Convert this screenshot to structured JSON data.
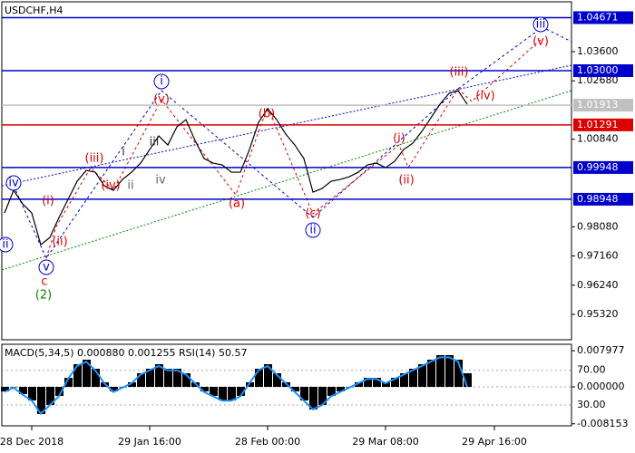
{
  "chart_data": [
    {
      "type": "line",
      "title": "USDCHF,H4",
      "categories": [
        null,
        null,
        null,
        "28 Dec 2018",
        null,
        null,
        null,
        null,
        null,
        null,
        null,
        null,
        null,
        null,
        null,
        null,
        "29 Jan 16:00",
        null,
        null,
        null,
        null,
        null,
        null,
        null,
        null,
        null,
        null,
        null,
        null,
        "28 Feb 00:00",
        null,
        null,
        null,
        null,
        null,
        null,
        null,
        null,
        null,
        null,
        null,
        null,
        "29 Mar 08:00",
        null,
        null,
        null,
        null,
        null,
        null,
        null,
        null,
        null,
        null,
        null,
        "29 Apr 16:00",
        null,
        null,
        null,
        null,
        null,
        null,
        null,
        null
      ],
      "values": [
        0.98514,
        0.99229,
        0.988,
        0.98514,
        0.97514,
        0.97743,
        0.98371,
        0.98943,
        0.99514,
        0.99857,
        0.998,
        0.99371,
        0.99229,
        0.99571,
        0.998,
        1.00086,
        1.00514,
        1.00943,
        1.00657,
        1.01229,
        1.01457,
        1.008,
        1.00229,
        1.00086,
        1.00029,
        0.998,
        0.998,
        1.00514,
        1.01371,
        1.018,
        1.01457,
        1.01,
        1.00657,
        1.00229,
        0.99171,
        0.99286,
        0.99514,
        0.99571,
        0.99657,
        0.998,
        1.00029,
        1.00086,
        0.99943,
        1.00143,
        1.00514,
        1.00714,
        1.01086,
        1.01514,
        1.01943,
        1.02286,
        1.02371,
        1.01943,
        null,
        null,
        null,
        null,
        null,
        null,
        null,
        null,
        null,
        null,
        null
      ],
      "color": "#000000",
      "ylim": [
        0.9452,
        1.0517
      ],
      "yticks": [
        {
          "value": 1.036,
          "label": "1.03600"
        },
        {
          "value": 1.0268,
          "label": "1.02680"
        },
        {
          "value": 1.0084,
          "label": "1.00840"
        },
        {
          "value": 0.9808,
          "label": "0.98080"
        },
        {
          "value": 0.9716,
          "label": "0.97160"
        },
        {
          "value": 0.9624,
          "label": "0.96240"
        },
        {
          "value": 0.9532,
          "label": "0.95320"
        }
      ],
      "levels": [
        {
          "value": 1.04671,
          "color": "#0000cc"
        },
        {
          "value": 1.03,
          "label": "1.03000",
          "color": "#0000cc"
        },
        {
          "value": 1.01913,
          "color": "#c0c0c0"
        },
        {
          "value": 1.01291,
          "color": "#dd0000"
        },
        {
          "value": 0.99948,
          "color": "#0000cc"
        },
        {
          "value": 0.98948,
          "color": "#0000cc"
        }
      ],
      "annotations": [
        {
          "text": "iv",
          "color": "#0000cc",
          "circle": true
        },
        {
          "text": "(i)",
          "color": "#dd0000"
        },
        {
          "text": "(ii)",
          "color": "#dd0000"
        },
        {
          "text": "ii",
          "color": "#0000cc",
          "circle": true
        },
        {
          "text": "v",
          "color": "#0000cc",
          "circle": true
        },
        {
          "text": "c",
          "color": "#dd0000"
        },
        {
          "text": "(2)",
          "color": "#008800"
        },
        {
          "text": "(iii)",
          "color": "#dd0000"
        },
        {
          "text": "i",
          "color": "#333333"
        },
        {
          "text": "(iv)",
          "color": "#dd0000"
        },
        {
          "text": "ii",
          "color": "#666666"
        },
        {
          "text": "iii",
          "color": "#333333"
        },
        {
          "text": "iv",
          "color": "#666666"
        },
        {
          "text": "(v)",
          "color": "#dd0000"
        },
        {
          "text": "i",
          "color": "#0000cc",
          "circle": true
        },
        {
          "text": "(b)",
          "color": "#dd0000"
        },
        {
          "text": "(a)",
          "color": "#dd0000"
        },
        {
          "text": "(c)",
          "color": "#dd0000"
        },
        {
          "text": "ii",
          "color": "#0000cc",
          "circle": true
        },
        {
          "text": "(i)",
          "color": "#dd0000"
        },
        {
          "text": "(ii)",
          "color": "#dd0000"
        },
        {
          "text": "(iii)",
          "color": "#dd0000"
        },
        {
          "text": "(iv)",
          "color": "#dd0000"
        },
        {
          "text": "(v)",
          "color": "#dd0000"
        },
        {
          "text": "iii",
          "color": "#0000cc",
          "circle": true
        }
      ]
    },
    {
      "type": "bar",
      "title": "MACD(5,34,5) 0.000880 0.001255 RSI(14) 50.57",
      "values": [
        -0.001,
        0,
        -0.0016,
        -0.003,
        -0.006,
        -0.004,
        -0.002,
        0.002,
        0.005,
        0.006,
        0.004,
        0.001,
        -0.001,
        0,
        0.001,
        0.003,
        0.004,
        0.005,
        0.004,
        0.004,
        0.003,
        0.001,
        -0.001,
        -0.002,
        -0.003,
        -0.003,
        -0.002,
        0.001,
        0.004,
        0.005,
        0.003,
        0.001,
        -0.001,
        -0.003,
        -0.005,
        -0.004,
        -0.002,
        -0.001,
        0,
        0.001,
        0.002,
        0.002,
        0.001,
        0.002,
        0.003,
        0.004,
        0.005,
        0.006,
        0.007,
        0.007,
        0.006,
        0.003,
        null,
        null,
        null,
        null,
        null,
        null,
        null,
        null,
        null,
        null,
        null
      ],
      "color": "#000000",
      "ylim": [
        -0.0086,
        0.0094
      ],
      "yticks": [
        0.007977,
        {
          "value": 0,
          "label": "0.000000"
        },
        -0.008153
      ],
      "y2lim": [
        6,
        100
      ],
      "y2ticks": [
        {
          "value": 70,
          "label": "70.00"
        },
        {
          "value": 30,
          "label": "30.00"
        }
      ],
      "series": [
        {
          "color": "#1e90ff",
          "axis": "y2",
          "values": [
            45,
            50,
            42,
            35,
            20,
            30,
            40,
            60,
            75,
            80,
            70,
            55,
            45,
            50,
            55,
            65,
            70,
            75,
            70,
            70,
            65,
            55,
            45,
            40,
            35,
            35,
            40,
            55,
            70,
            75,
            65,
            55,
            45,
            35,
            25,
            30,
            40,
            45,
            50,
            55,
            60,
            60,
            55,
            60,
            65,
            70,
            75,
            80,
            85,
            85,
            80,
            51,
            null,
            null,
            null,
            null,
            null,
            null,
            null,
            null,
            null,
            null,
            null
          ]
        }
      ]
    }
  ]
}
